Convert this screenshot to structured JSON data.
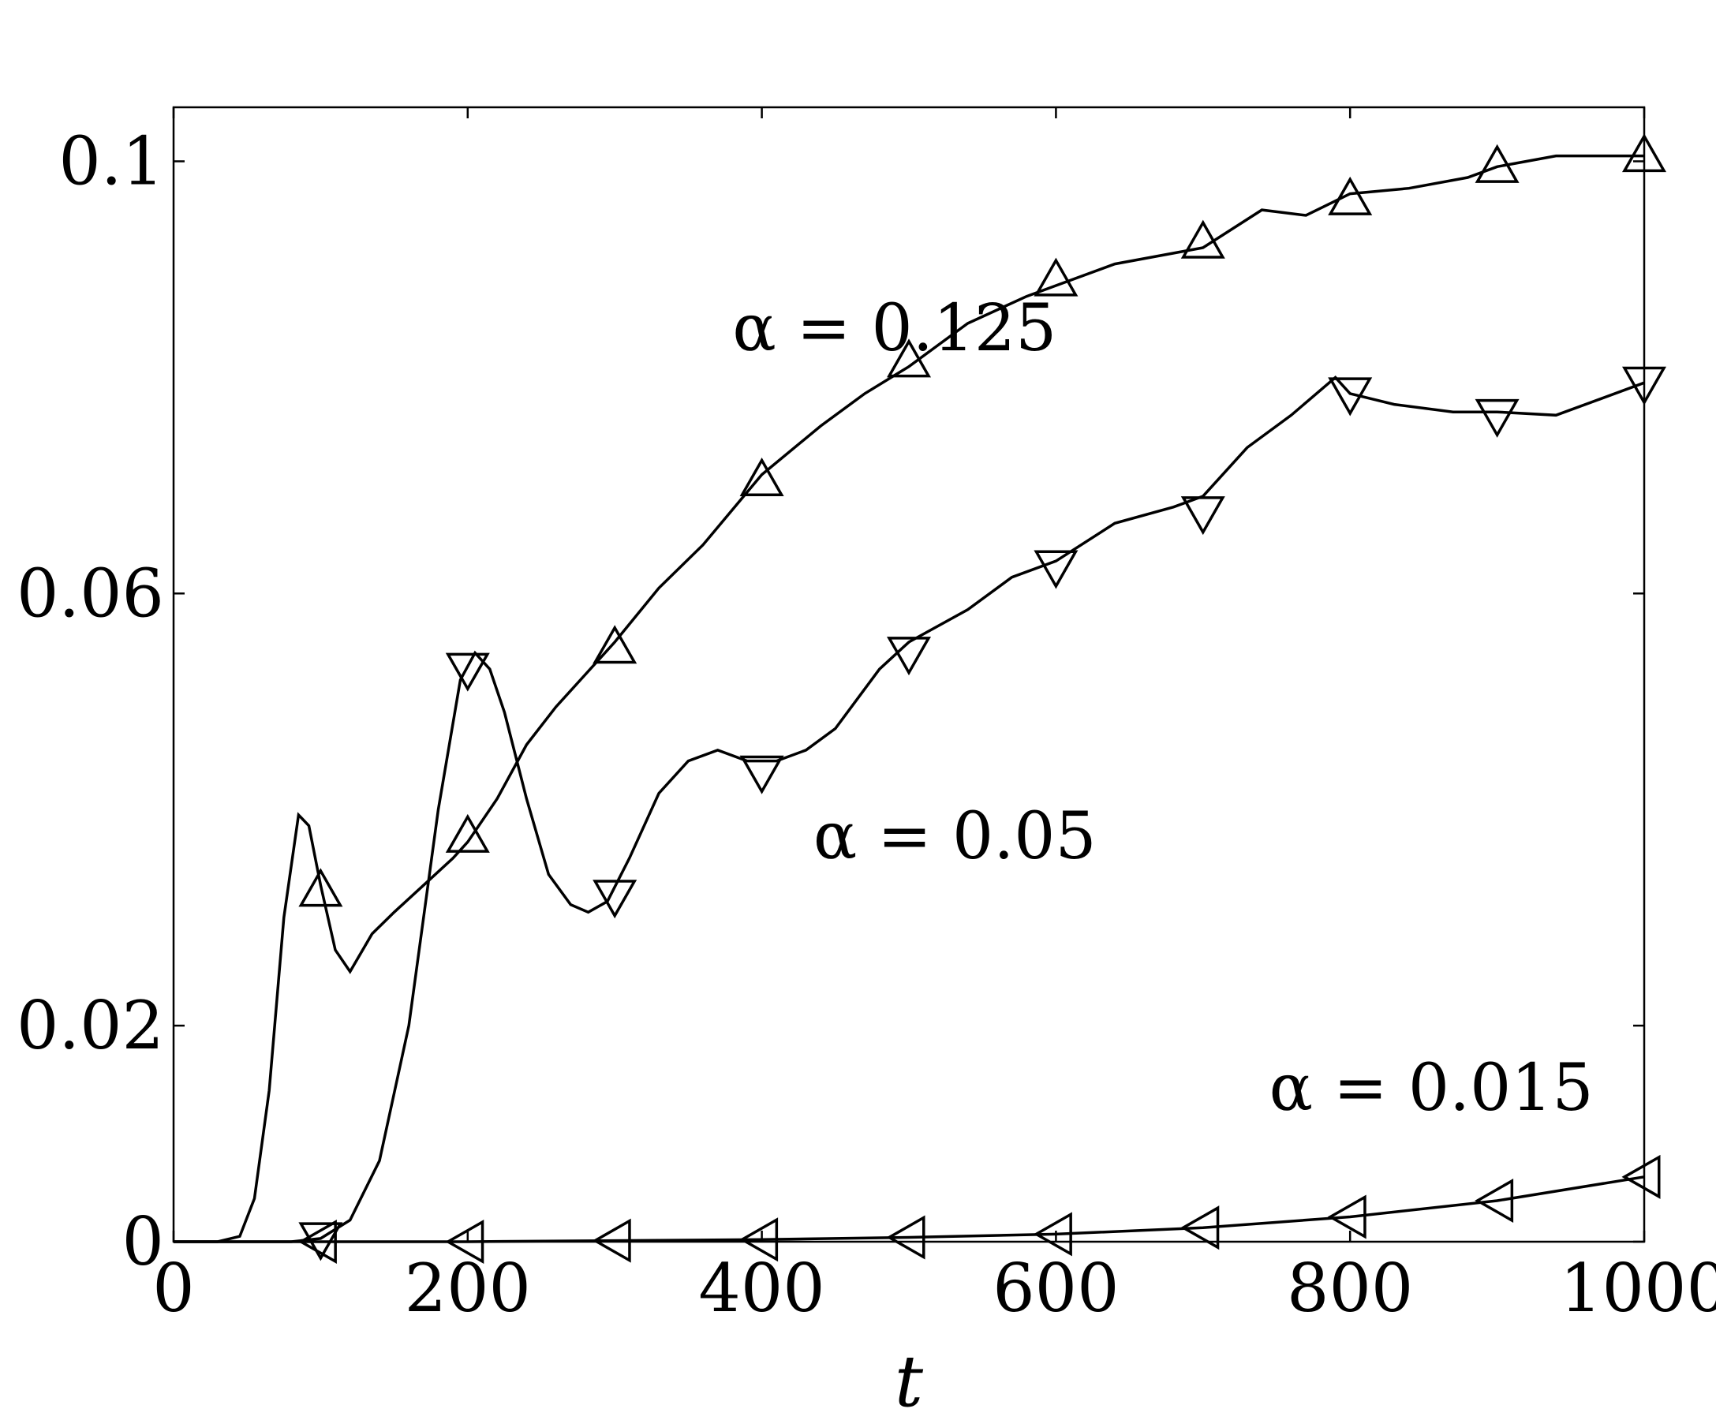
{
  "chart_data": {
    "type": "line",
    "xlabel": "t",
    "ylabel": "",
    "xlim": [
      0,
      1000
    ],
    "ylim": [
      0,
      0.105
    ],
    "xticks": [
      0,
      200,
      400,
      600,
      800,
      1000
    ],
    "xtick_labels": [
      "0",
      "200",
      "400",
      "600",
      "800",
      "1000"
    ],
    "yticks": [
      0,
      0.02,
      0.06,
      0.1
    ],
    "ytick_labels": [
      "0",
      "0.02",
      "0.06",
      "0.1"
    ],
    "grid": false,
    "series": [
      {
        "label": "α = 0.125",
        "marker": "triangle-up",
        "x": [
          0,
          30,
          45,
          55,
          65,
          75,
          85,
          92,
          100,
          110,
          120,
          135,
          150,
          170,
          190,
          200,
          220,
          240,
          260,
          280,
          300,
          330,
          360,
          400,
          440,
          470,
          500,
          540,
          580,
          600,
          640,
          680,
          700,
          740,
          770,
          800,
          840,
          880,
          900,
          940,
          970,
          1000
        ],
        "y": [
          0,
          0,
          0.0005,
          0.004,
          0.014,
          0.03,
          0.0395,
          0.0385,
          0.033,
          0.027,
          0.025,
          0.0285,
          0.0305,
          0.033,
          0.0355,
          0.037,
          0.041,
          0.046,
          0.0495,
          0.0525,
          0.0555,
          0.0605,
          0.0645,
          0.071,
          0.0755,
          0.0785,
          0.081,
          0.085,
          0.0875,
          0.0885,
          0.0905,
          0.0915,
          0.092,
          0.0955,
          0.095,
          0.097,
          0.0975,
          0.0985,
          0.0995,
          0.1005,
          0.1005,
          0.1005
        ],
        "marker_x": [
          100,
          200,
          300,
          400,
          500,
          600,
          700,
          800,
          900,
          1000
        ],
        "marker_y": [
          0.0325,
          0.0375,
          0.055,
          0.0705,
          0.0815,
          0.089,
          0.0925,
          0.0965,
          0.0995,
          0.1005
        ]
      },
      {
        "label": "α = 0.05",
        "marker": "triangle-down",
        "x": [
          0,
          80,
          100,
          120,
          140,
          160,
          180,
          195,
          205,
          215,
          225,
          240,
          255,
          270,
          282,
          295,
          310,
          330,
          350,
          370,
          390,
          410,
          430,
          450,
          480,
          500,
          540,
          570,
          600,
          640,
          680,
          700,
          730,
          760,
          790,
          800,
          830,
          870,
          900,
          940,
          970,
          1000
        ],
        "y": [
          0,
          0,
          0.0003,
          0.002,
          0.0075,
          0.02,
          0.04,
          0.052,
          0.0545,
          0.053,
          0.049,
          0.041,
          0.034,
          0.0312,
          0.0305,
          0.0315,
          0.0355,
          0.0415,
          0.0445,
          0.0455,
          0.0445,
          0.0445,
          0.0455,
          0.0475,
          0.053,
          0.0555,
          0.0585,
          0.0615,
          0.063,
          0.0665,
          0.068,
          0.069,
          0.0735,
          0.0765,
          0.08,
          0.0785,
          0.0775,
          0.0768,
          0.0768,
          0.0765,
          0.078,
          0.0795
        ],
        "marker_x": [
          100,
          200,
          300,
          400,
          500,
          600,
          700,
          800,
          900,
          1000
        ],
        "marker_y": [
          0.0003,
          0.053,
          0.032,
          0.0435,
          0.0545,
          0.0625,
          0.0675,
          0.0785,
          0.0765,
          0.0795
        ]
      },
      {
        "label": "α = 0.015",
        "marker": "triangle-left",
        "x": [
          0,
          100,
          200,
          300,
          400,
          500,
          600,
          700,
          800,
          900,
          1000
        ],
        "y": [
          0,
          0,
          0,
          0.0001,
          0.0002,
          0.0004,
          0.0007,
          0.0013,
          0.0023,
          0.0038,
          0.006
        ],
        "marker_x": [
          100,
          200,
          300,
          400,
          500,
          600,
          700,
          800,
          900,
          1000
        ],
        "marker_y": [
          0,
          0,
          0.0001,
          0.0002,
          0.0004,
          0.0007,
          0.0013,
          0.0023,
          0.0038,
          0.006
        ]
      }
    ],
    "annotations": [
      {
        "text": "α = 0.125",
        "x": 380,
        "y": 0.0825
      },
      {
        "text": "α = 0.05",
        "x": 435,
        "y": 0.0355
      },
      {
        "text": "α = 0.015",
        "x": 745,
        "y": 0.0122
      }
    ]
  }
}
